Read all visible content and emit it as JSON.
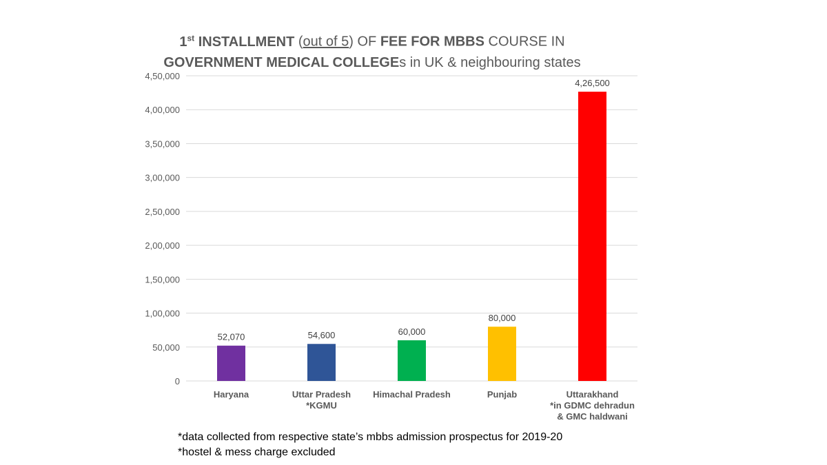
{
  "title": {
    "line1_a": "1",
    "line1_sup": "st",
    "line1_b": " INSTALLMENT",
    "line1_c": " (",
    "line1_underlined": "out of 5",
    "line1_d": ") OF ",
    "line1_e": "FEE FOR MBBS",
    "line1_f": " COURSE IN",
    "line2_bold": "GOVERNMENT MEDICAL COLLEGE",
    "line2_rest": "s in UK & neighbouring states"
  },
  "chart_data": {
    "type": "bar",
    "categories": [
      [
        "Haryana"
      ],
      [
        "Uttar Pradesh",
        "*KGMU"
      ],
      [
        "Himachal Pradesh"
      ],
      [
        "Punjab"
      ],
      [
        "Uttarakhand",
        "*in GDMC dehradun",
        "& GMC haldwani"
      ]
    ],
    "values": [
      52070,
      54600,
      60000,
      80000,
      426500
    ],
    "data_labels": [
      "52,070",
      "54,600",
      "60,000",
      "80,000",
      "4,26,500"
    ],
    "colors": [
      "#7030a0",
      "#2f5597",
      "#00b050",
      "#ffc000",
      "#ff0000"
    ],
    "ylim": [
      0,
      450000
    ],
    "yticks": [
      0,
      50000,
      100000,
      150000,
      200000,
      250000,
      300000,
      350000,
      400000,
      450000
    ],
    "ytick_labels": [
      "0",
      "50,000",
      "1,00,000",
      "1,50,000",
      "2,00,000",
      "2,50,000",
      "3,00,000",
      "3,50,000",
      "4,00,000",
      "4,50,000"
    ],
    "grid": true,
    "gridline_color": "#d9d9d9"
  },
  "notes": [
    "*data collected from respective state’s mbbs admission prospectus for 2019-20",
    "*hostel & mess charge excluded"
  ]
}
